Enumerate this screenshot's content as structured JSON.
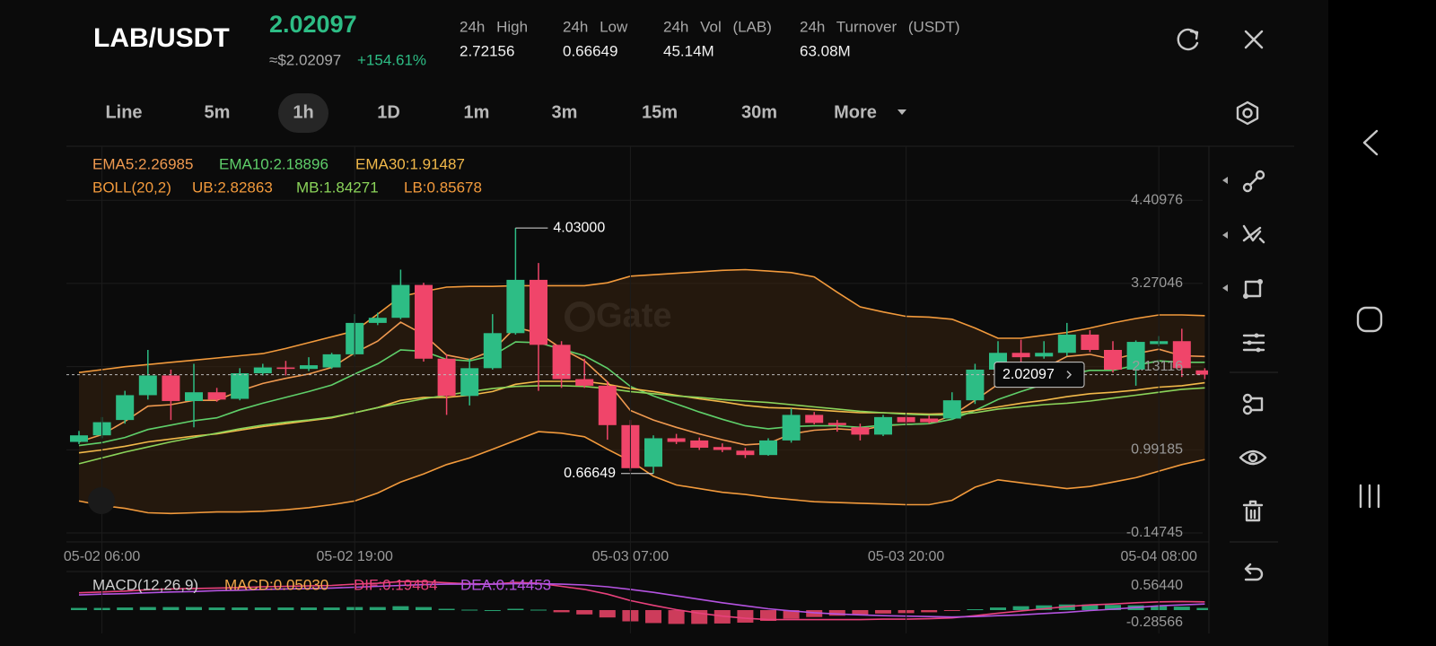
{
  "header": {
    "pair": "LAB/USDT",
    "price": "2.02097",
    "usd_price": "≈$2.02097",
    "change": "+154.61%",
    "stats": [
      {
        "label": "24h High",
        "value": "2.72156"
      },
      {
        "label": "24h Low",
        "value": "0.66649"
      },
      {
        "label": "24h Vol (LAB)",
        "value": "45.14M"
      },
      {
        "label": "24h Turnover (USDT)",
        "value": "63.08M"
      }
    ]
  },
  "tabs": [
    "Line",
    "5m",
    "1h",
    "1D",
    "1m",
    "3m",
    "15m",
    "30m",
    "More"
  ],
  "active_tab": 2,
  "chart_data": {
    "type": "candlestick",
    "watermark": "Gate",
    "categories": [
      null,
      "05-02 06:00",
      null,
      null,
      null,
      null,
      null,
      null,
      null,
      null,
      null,
      null,
      "05-02 19:00",
      null,
      null,
      null,
      null,
      null,
      null,
      null,
      null,
      null,
      null,
      null,
      "05-03 07:00",
      null,
      null,
      null,
      null,
      null,
      null,
      null,
      null,
      null,
      null,
      null,
      "05-03 20:00",
      null,
      null,
      null,
      null,
      null,
      null,
      null,
      null,
      null,
      null,
      "05-04 08:00",
      null,
      null
    ],
    "open": [
      1.1,
      1.19,
      1.4,
      1.74,
      2.01,
      1.66,
      1.78,
      1.69,
      2.04,
      2.12,
      2.1,
      2.12,
      2.3,
      2.73,
      2.8,
      3.25,
      2.24,
      1.73,
      2.11,
      2.59,
      3.32,
      2.43,
      1.96,
      1.87,
      1.33,
      0.76,
      1.15,
      1.12,
      1.03,
      0.98,
      0.92,
      1.12,
      1.47,
      1.36,
      1.3,
      1.2,
      1.44,
      1.42,
      1.42,
      1.67,
      2.09,
      2.32,
      2.27,
      2.32,
      2.57,
      2.36,
      2.09,
      2.44,
      2.48,
      2.08
    ],
    "high": [
      1.25,
      1.44,
      1.8,
      2.36,
      2.09,
      2.17,
      1.84,
      2.11,
      2.17,
      2.21,
      2.26,
      2.32,
      2.85,
      2.87,
      3.46,
      3.28,
      2.3,
      2.24,
      2.85,
      4.03,
      3.55,
      2.48,
      2.24,
      1.93,
      1.4,
      1.19,
      1.21,
      1.16,
      1.08,
      1.02,
      1.15,
      1.56,
      1.51,
      1.4,
      1.35,
      1.47,
      1.46,
      1.46,
      1.78,
      2.17,
      2.48,
      2.5,
      2.48,
      2.73,
      2.63,
      2.48,
      2.49,
      2.55,
      2.65,
      2.11
    ],
    "low": [
      1.07,
      1.15,
      1.35,
      1.68,
      1.4,
      1.3,
      1.65,
      1.67,
      2.01,
      2.01,
      2.07,
      2.1,
      2.27,
      2.7,
      2.78,
      2.2,
      1.47,
      1.6,
      2.09,
      2.57,
      1.8,
      1.84,
      1.84,
      1.13,
      0.7,
      0.66649,
      1.07,
      0.99,
      0.96,
      0.88,
      0.91,
      1.09,
      1.34,
      1.24,
      1.12,
      1.18,
      1.34,
      1.35,
      1.4,
      1.62,
      2.04,
      2.19,
      2.24,
      2.28,
      2.33,
      2.05,
      1.87,
      2.41,
      1.99,
      1.96
    ],
    "close": [
      1.19,
      1.37,
      1.74,
      2.01,
      1.66,
      1.78,
      1.68,
      2.04,
      2.12,
      2.1,
      2.15,
      2.3,
      2.73,
      2.8,
      3.25,
      2.24,
      1.73,
      2.11,
      2.59,
      3.32,
      2.43,
      1.96,
      1.87,
      1.33,
      0.74,
      1.15,
      1.1,
      1.02,
      0.99,
      0.92,
      1.12,
      1.47,
      1.36,
      1.33,
      1.2,
      1.44,
      1.37,
      1.37,
      1.67,
      2.09,
      2.32,
      2.26,
      2.32,
      2.57,
      2.36,
      2.09,
      2.47,
      2.48,
      2.11,
      2.02097
    ],
    "up_color": "#2dbd85",
    "down_color": "#f0456a",
    "last_price": 2.02097,
    "max_label": "4.03000",
    "min_label": "0.66649",
    "boll_label": "BOLL(20,2)",
    "lines": [
      {
        "label": "EMA5:2.26985",
        "color": "#f09a50",
        "values": [
          1.1,
          1.2,
          1.38,
          1.59,
          1.61,
          1.67,
          1.67,
          1.8,
          1.9,
          1.97,
          2.03,
          2.12,
          2.32,
          2.48,
          2.74,
          2.57,
          2.29,
          2.23,
          2.35,
          2.67,
          2.59,
          2.38,
          2.21,
          1.92,
          1.53,
          1.4,
          1.3,
          1.21,
          1.13,
          1.06,
          1.08,
          1.21,
          1.26,
          1.28,
          1.26,
          1.32,
          1.34,
          1.35,
          1.46,
          1.67,
          1.89,
          2.01,
          2.11,
          2.27,
          2.3,
          2.23,
          2.31,
          2.37,
          2.28,
          2.27
        ]
      },
      {
        "label": "EMA10:2.18896",
        "color": "#5fcf6a",
        "values": [
          1.05,
          1.09,
          1.16,
          1.27,
          1.33,
          1.39,
          1.43,
          1.54,
          1.63,
          1.71,
          1.79,
          1.88,
          2.03,
          2.17,
          2.36,
          2.34,
          2.23,
          2.21,
          2.28,
          2.47,
          2.46,
          2.37,
          2.28,
          2.11,
          1.86,
          1.73,
          1.62,
          1.51,
          1.41,
          1.32,
          1.28,
          1.31,
          1.32,
          1.32,
          1.3,
          1.33,
          1.34,
          1.35,
          1.41,
          1.53,
          1.68,
          1.79,
          1.89,
          2.02,
          2.08,
          2.08,
          2.15,
          2.21,
          2.19,
          2.19
        ]
      },
      {
        "label": "EMA30:1.91487",
        "color": "#f2b94a",
        "values": [
          0.95,
          0.99,
          1.04,
          1.1,
          1.14,
          1.18,
          1.21,
          1.26,
          1.31,
          1.35,
          1.39,
          1.43,
          1.5,
          1.57,
          1.67,
          1.71,
          1.71,
          1.74,
          1.79,
          1.89,
          1.93,
          1.93,
          1.93,
          1.89,
          1.83,
          1.79,
          1.74,
          1.69,
          1.65,
          1.6,
          1.57,
          1.56,
          1.54,
          1.52,
          1.5,
          1.5,
          1.49,
          1.48,
          1.49,
          1.53,
          1.58,
          1.63,
          1.67,
          1.72,
          1.76,
          1.78,
          1.81,
          1.85,
          1.87,
          1.91
        ]
      },
      {
        "label": "UB:2.82863",
        "color": "#f29a3c",
        "values": [
          2.05,
          2.09,
          2.13,
          2.16,
          2.19,
          2.22,
          2.25,
          2.28,
          2.31,
          2.38,
          2.46,
          2.54,
          2.62,
          2.85,
          3.09,
          3.16,
          3.22,
          3.23,
          3.23,
          3.24,
          3.24,
          3.24,
          3.24,
          3.28,
          3.37,
          3.39,
          3.41,
          3.43,
          3.45,
          3.46,
          3.44,
          3.42,
          3.36,
          3.15,
          2.95,
          2.88,
          2.82,
          2.81,
          2.78,
          2.66,
          2.52,
          2.52,
          2.56,
          2.6,
          2.66,
          2.73,
          2.79,
          2.84,
          2.84,
          2.83
        ]
      },
      {
        "label": "MB:1.84271",
        "color": "#8bd45a",
        "values": [
          0.8,
          0.88,
          0.96,
          1.03,
          1.1,
          1.16,
          1.22,
          1.28,
          1.33,
          1.37,
          1.4,
          1.44,
          1.5,
          1.57,
          1.63,
          1.69,
          1.74,
          1.79,
          1.83,
          1.86,
          1.87,
          1.87,
          1.86,
          1.83,
          1.79,
          1.76,
          1.73,
          1.71,
          1.68,
          1.66,
          1.64,
          1.61,
          1.58,
          1.55,
          1.52,
          1.5,
          1.48,
          1.47,
          1.47,
          1.5,
          1.55,
          1.58,
          1.61,
          1.63,
          1.66,
          1.7,
          1.74,
          1.78,
          1.82,
          1.84
        ]
      },
      {
        "label": "LB:0.85678",
        "color": "#f29a3c",
        "values": [
          0.29,
          0.23,
          0.19,
          0.13,
          0.12,
          0.13,
          0.14,
          0.14,
          0.15,
          0.17,
          0.2,
          0.24,
          0.29,
          0.4,
          0.55,
          0.66,
          0.79,
          0.88,
          1.0,
          1.12,
          1.24,
          1.22,
          1.17,
          1.0,
          0.84,
          0.63,
          0.51,
          0.46,
          0.41,
          0.38,
          0.34,
          0.31,
          0.28,
          0.27,
          0.26,
          0.25,
          0.24,
          0.24,
          0.3,
          0.48,
          0.58,
          0.54,
          0.5,
          0.46,
          0.49,
          0.55,
          0.61,
          0.7,
          0.79,
          0.86
        ]
      }
    ],
    "band_fill": "#3a2410",
    "ylim": [
      -0.27,
      5.15
    ],
    "yticks": [
      4.40976,
      3.27046,
      2.13116,
      0.99185,
      -0.14745
    ],
    "grid": true,
    "macd": {
      "title": "MACD(12,26,9)",
      "hist": {
        "label": "MACD:0.05030",
        "color": "#f2a84a",
        "values": [
          0.05,
          0.05,
          0.06,
          0.07,
          0.07,
          0.07,
          0.06,
          0.06,
          0.06,
          0.06,
          0.06,
          0.06,
          0.07,
          0.07,
          0.09,
          0.07,
          0.03,
          0.01,
          0,
          0.03,
          0.01,
          -0.05,
          -0.1,
          -0.17,
          -0.26,
          -0.3,
          -0.32,
          -0.32,
          -0.31,
          -0.29,
          -0.25,
          -0.2,
          -0.16,
          -0.13,
          -0.11,
          -0.08,
          -0.07,
          -0.05,
          -0.02,
          0.02,
          0.06,
          0.09,
          0.11,
          0.13,
          0.13,
          0.12,
          0.11,
          0.09,
          0.08,
          0.05
        ]
      },
      "dif": {
        "label": "DIF:0.19484",
        "color": "#e8417c",
        "values": [
          0.4,
          0.42,
          0.44,
          0.47,
          0.49,
          0.5,
          0.51,
          0.52,
          0.54,
          0.55,
          0.56,
          0.57,
          0.6,
          0.62,
          0.66,
          0.66,
          0.63,
          0.61,
          0.6,
          0.64,
          0.62,
          0.55,
          0.48,
          0.37,
          0.22,
          0.11,
          0.01,
          -0.07,
          -0.14,
          -0.19,
          -0.22,
          -0.22,
          -0.22,
          -0.22,
          -0.22,
          -0.21,
          -0.21,
          -0.2,
          -0.18,
          -0.13,
          -0.07,
          -0.02,
          0.03,
          0.08,
          0.12,
          0.14,
          0.17,
          0.19,
          0.2,
          0.19
        ]
      },
      "dea": {
        "label": "DEA:0.14453",
        "color": "#b453e0",
        "values": [
          0.35,
          0.37,
          0.38,
          0.4,
          0.42,
          0.43,
          0.45,
          0.46,
          0.48,
          0.49,
          0.5,
          0.51,
          0.53,
          0.55,
          0.57,
          0.59,
          0.6,
          0.6,
          0.6,
          0.61,
          0.61,
          0.6,
          0.58,
          0.54,
          0.48,
          0.41,
          0.33,
          0.25,
          0.17,
          0.1,
          0.03,
          -0.02,
          -0.06,
          -0.09,
          -0.11,
          -0.13,
          -0.14,
          -0.15,
          -0.16,
          -0.15,
          -0.13,
          -0.11,
          -0.08,
          -0.05,
          -0.01,
          0.02,
          0.06,
          0.1,
          0.12,
          0.14
        ]
      },
      "ylim": [
        -0.54,
        0.83
      ],
      "yticks": [
        {
          "value": 0.5644,
          "label": "0.56440"
        },
        -0.28566
      ]
    }
  }
}
